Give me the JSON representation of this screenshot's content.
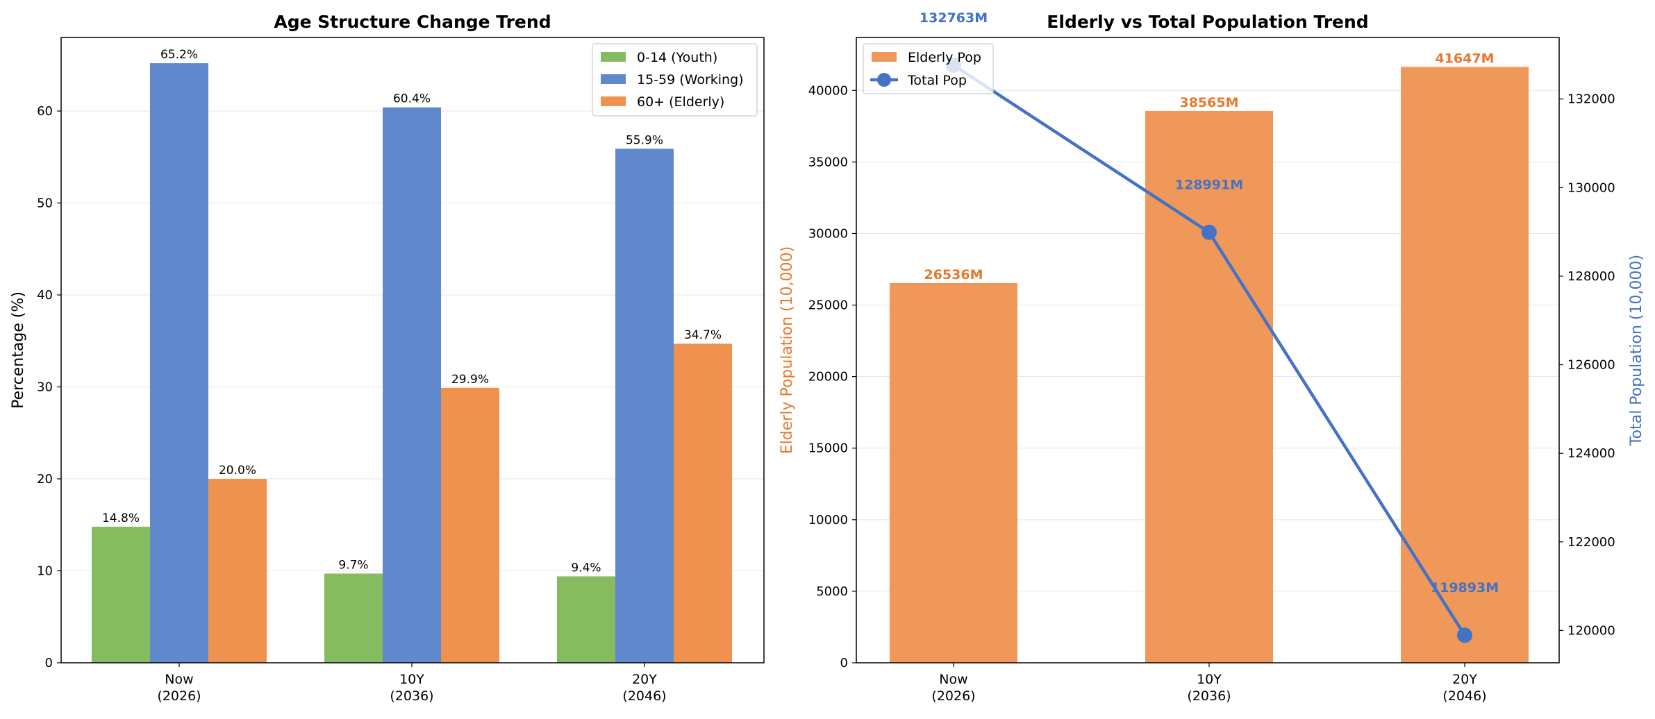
{
  "chart_data": [
    {
      "type": "bar",
      "title": "Age Structure Change Trend",
      "xlabel": "",
      "ylabel": "Percentage (%)",
      "ylim": [
        0,
        68
      ],
      "yticks": [
        0,
        10,
        20,
        30,
        40,
        50,
        60
      ],
      "grid": true,
      "legend_position": "top-right",
      "categories": [
        "Now\n(2026)",
        "10Y\n(2036)",
        "20Y\n(2046)"
      ],
      "series": [
        {
          "name": "0-14 (Youth)",
          "color": "#86bb60",
          "values": [
            14.8,
            9.7,
            9.4
          ],
          "labels": [
            "14.8%",
            "9.7%",
            "9.4%"
          ]
        },
        {
          "name": "15-59 (Working)",
          "color": "#6089cd",
          "values": [
            65.2,
            60.4,
            55.9
          ],
          "labels": [
            "65.2%",
            "60.4%",
            "55.9%"
          ]
        },
        {
          "name": "60+ (Elderly)",
          "color": "#f0924f",
          "values": [
            20.0,
            29.9,
            34.7
          ],
          "labels": [
            "20.0%",
            "29.9%",
            "34.7%"
          ]
        }
      ]
    },
    {
      "type": "bar+line",
      "title": "Elderly vs Total Population Trend",
      "xlabel": "",
      "ylabel_left": "Elderly Population (10,000)",
      "ylabel_right": "Total Population (10,000)",
      "ylim_left": [
        0,
        43700
      ],
      "yticks_left": [
        0,
        5000,
        10000,
        15000,
        20000,
        25000,
        30000,
        35000,
        40000
      ],
      "ylim_right": [
        119270,
        133390
      ],
      "yticks_right": [
        120000,
        122000,
        124000,
        126000,
        128000,
        130000,
        132000
      ],
      "grid": true,
      "legend_position": "top-left",
      "categories": [
        "Now\n(2026)",
        "10Y\n(2036)",
        "20Y\n(2046)"
      ],
      "bar_series": {
        "name": "Elderly Pop",
        "color": "#f0985a",
        "label_color": "#e9782f",
        "values": [
          26536,
          38565,
          41647
        ],
        "labels": [
          "26536M",
          "38565M",
          "41647M"
        ]
      },
      "line_series": {
        "name": "Total Pop",
        "color": "#4472c4",
        "values": [
          132763,
          128991,
          119893
        ],
        "labels": [
          "132763M",
          "128991M",
          "119893M"
        ]
      },
      "left_axis_color": "#e9782f",
      "right_axis_color": "#4472c4"
    }
  ]
}
